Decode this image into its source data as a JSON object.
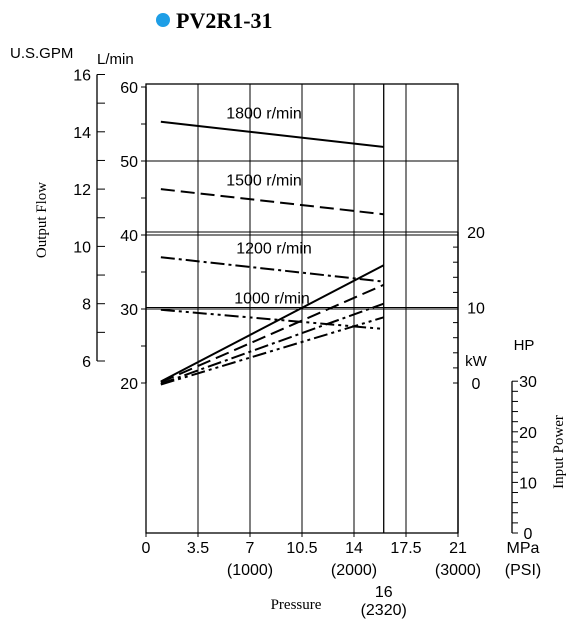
{
  "title": "PV2R1-31",
  "colors": {
    "bullet": "#1e9ee6",
    "ink": "#000000"
  },
  "axes": {
    "x": {
      "label": "Pressure",
      "unit_mpa": "MPa",
      "unit_psi": "(PSI)",
      "ticks_mpa": [
        {
          "v": 0,
          "t": "0"
        },
        {
          "v": 3.5,
          "t": "3.5"
        },
        {
          "v": 7,
          "t": "7"
        },
        {
          "v": 10.5,
          "t": "10.5"
        },
        {
          "v": 14,
          "t": "14"
        },
        {
          "v": 17.5,
          "t": "17.5"
        },
        {
          "v": 21,
          "t": "21"
        }
      ],
      "ticks_psi": [
        {
          "v": 7,
          "t": "(1000)"
        },
        {
          "v": 14,
          "t": "(2000)"
        },
        {
          "v": 21,
          "t": "(3000)"
        }
      ],
      "special": {
        "v": 16,
        "mpa": "16",
        "psi": "(2320)"
      },
      "range": [
        0,
        21
      ]
    },
    "flow": {
      "label": "Output Flow",
      "unit_lmin": "L/min",
      "unit_gpm": "U.S.GPM",
      "ticks_lmin": [
        {
          "v": 20,
          "t": "20"
        },
        {
          "v": 30,
          "t": "30"
        },
        {
          "v": 40,
          "t": "40"
        },
        {
          "v": 50,
          "t": "50"
        },
        {
          "v": 60,
          "t": "60"
        }
      ],
      "ticks_gpm": [
        {
          "v": 6,
          "t": "6"
        },
        {
          "v": 8,
          "t": "8"
        },
        {
          "v": 10,
          "t": "10"
        },
        {
          "v": 12,
          "t": "12"
        },
        {
          "v": 14,
          "t": "14"
        },
        {
          "v": 16,
          "t": "16"
        }
      ],
      "range_lmin": [
        20,
        60
      ]
    },
    "power": {
      "label": "Input Power",
      "unit_kw": "kW",
      "unit_hp": "HP",
      "ticks_kw": [
        {
          "v": 0,
          "t": "0"
        },
        {
          "v": 10,
          "t": "10"
        },
        {
          "v": 20,
          "t": "20"
        }
      ],
      "ticks_hp": [
        {
          "v": 0,
          "t": "0"
        },
        {
          "v": 10,
          "t": "10"
        },
        {
          "v": 20,
          "t": "20"
        },
        {
          "v": 30,
          "t": "30"
        }
      ],
      "range_kw": [
        -2,
        20
      ]
    }
  },
  "chart_data": {
    "type": "line",
    "title": "PV2R1-31",
    "xlabel": "Pressure",
    "xlim": [
      0,
      21
    ],
    "grid": true,
    "flow_series": [
      {
        "name": "1800 r/min",
        "dash": "solid",
        "x": [
          1,
          16
        ],
        "y": [
          55.3,
          51.9
        ]
      },
      {
        "name": "1500 r/min",
        "dash": "dash",
        "x": [
          1,
          16
        ],
        "y": [
          46.2,
          42.8
        ]
      },
      {
        "name": "1200 r/min",
        "dash": "dashdot",
        "x": [
          1,
          16
        ],
        "y": [
          37.0,
          33.7
        ]
      },
      {
        "name": "1000 r/min",
        "dash": "dashdotdot",
        "x": [
          1,
          16
        ],
        "y": [
          29.9,
          27.3
        ]
      }
    ],
    "power_series": [
      {
        "dash": "solid",
        "x": [
          1,
          16
        ],
        "y": [
          0.2,
          15.6
        ]
      },
      {
        "dash": "dash",
        "x": [
          1,
          16
        ],
        "y": [
          0.1,
          13.0
        ]
      },
      {
        "dash": "dashdot",
        "x": [
          1,
          16
        ],
        "y": [
          -0.1,
          10.5
        ]
      },
      {
        "dash": "dashdotdot",
        "x": [
          1,
          16
        ],
        "y": [
          -0.2,
          8.7
        ]
      }
    ]
  }
}
